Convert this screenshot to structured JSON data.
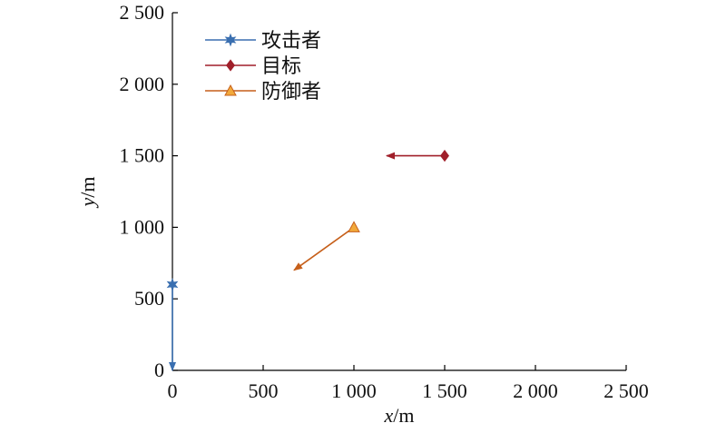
{
  "chart_data": {
    "type": "scatter",
    "xlabel": {
      "var": "x",
      "unit": "/m"
    },
    "ylabel": {
      "var": "y",
      "unit": "/m"
    },
    "xlim": [
      0,
      2500
    ],
    "ylim": [
      0,
      2500
    ],
    "xticks": [
      0,
      500,
      1000,
      1500,
      2000,
      2500
    ],
    "yticks": [
      0,
      500,
      1000,
      1500,
      2000,
      2500
    ],
    "xtick_labels": [
      "0",
      "500",
      "1 000",
      "1 500",
      "2 000",
      "2 500"
    ],
    "ytick_labels": [
      "0",
      "500",
      "1 000",
      "1 500",
      "2 000",
      "2 500"
    ],
    "grid": false,
    "legend_position": "top-left",
    "series": [
      {
        "name": "攻击者",
        "marker": "star",
        "color": "#3a6fb0",
        "points": [
          [
            0,
            600
          ]
        ],
        "arrow_to": [
          0,
          0
        ]
      },
      {
        "name": "目标",
        "marker": "diamond",
        "color": "#a01f2a",
        "points": [
          [
            1500,
            1500
          ]
        ],
        "arrow_to": [
          1180,
          1500
        ]
      },
      {
        "name": "防御者",
        "marker": "triangle",
        "color": "#c65f1a",
        "marker_fill": "#f2a93b",
        "points": [
          [
            1000,
            1000
          ]
        ],
        "arrow_to": [
          670,
          700
        ]
      }
    ]
  }
}
